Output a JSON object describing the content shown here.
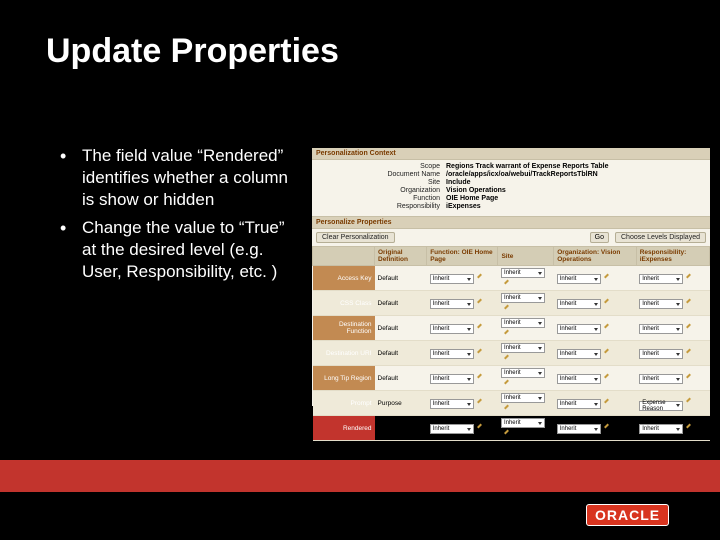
{
  "title": "Update Properties",
  "bullets": [
    "The field value “Rendered” identifies whether a column is show or hidden",
    "Change the value to “True” at the desired level (e.g. User, Responsibility, etc. )"
  ],
  "context": {
    "header": "Personalization Context",
    "rows": [
      {
        "label": "Scope",
        "value": "Regions Track warrant of Expense Reports Table"
      },
      {
        "label": "Document Name",
        "value": "/oracle/apps/icx/oa/webui/TrackReportsTblRN"
      },
      {
        "label": "Site",
        "value": "Include"
      },
      {
        "label": "Organization",
        "value": "Vision Operations"
      },
      {
        "label": "Function",
        "value": "OIE Home Page"
      },
      {
        "label": "Responsibility",
        "value": "iExpenses"
      }
    ]
  },
  "properties": {
    "header": "Personalize Properties",
    "clear_button": "Clear Personalization",
    "go_button": "Go",
    "levels_button": "Choose Levels Displayed",
    "columns": [
      "",
      "Original Definition",
      "Function: OIE Home Page",
      "Site",
      "Organization: Vision Operations",
      "Responsibility: iExpenses"
    ],
    "rows": [
      {
        "label": "Access Key",
        "highlight": false,
        "orig": "Default",
        "cells": [
          "Inherit",
          "Inherit",
          "Inherit",
          "Inherit"
        ]
      },
      {
        "label": "CSS Class",
        "highlight": false,
        "orig": "Default",
        "cells": [
          "Inherit",
          "Inherit",
          "Inherit",
          "Inherit"
        ]
      },
      {
        "label": "Destination Function",
        "highlight": false,
        "orig": "Default",
        "cells": [
          "Inherit",
          "Inherit",
          "Inherit",
          "Inherit"
        ]
      },
      {
        "label": "Destination URI",
        "highlight": false,
        "orig": "Default",
        "cells": [
          "Inherit",
          "Inherit",
          "Inherit",
          "Inherit"
        ]
      },
      {
        "label": "Long Tip Region",
        "highlight": false,
        "orig": "Default",
        "cells": [
          "Inherit",
          "Inherit",
          "Inherit",
          "Inherit"
        ]
      },
      {
        "label": "Prompt",
        "highlight": false,
        "orig": "Purpose",
        "cells": [
          "Inherit",
          "Inherit",
          "Inherit",
          "Expense Reason"
        ]
      },
      {
        "label": "Rendered",
        "highlight": true,
        "orig": "true",
        "cells": [
          "Inherit",
          "Inherit",
          "Inherit",
          "Inherit"
        ]
      }
    ]
  },
  "logo_text": "ORACLE",
  "colors": {
    "red_bar": "#c2342d",
    "screenshot_bg": "#f6f3ea",
    "section_header": "#d9d0b8",
    "grid_header": "#d4cdb5",
    "rowlabel_bg": "#c28a52",
    "oracle_red": "#d8341f"
  }
}
